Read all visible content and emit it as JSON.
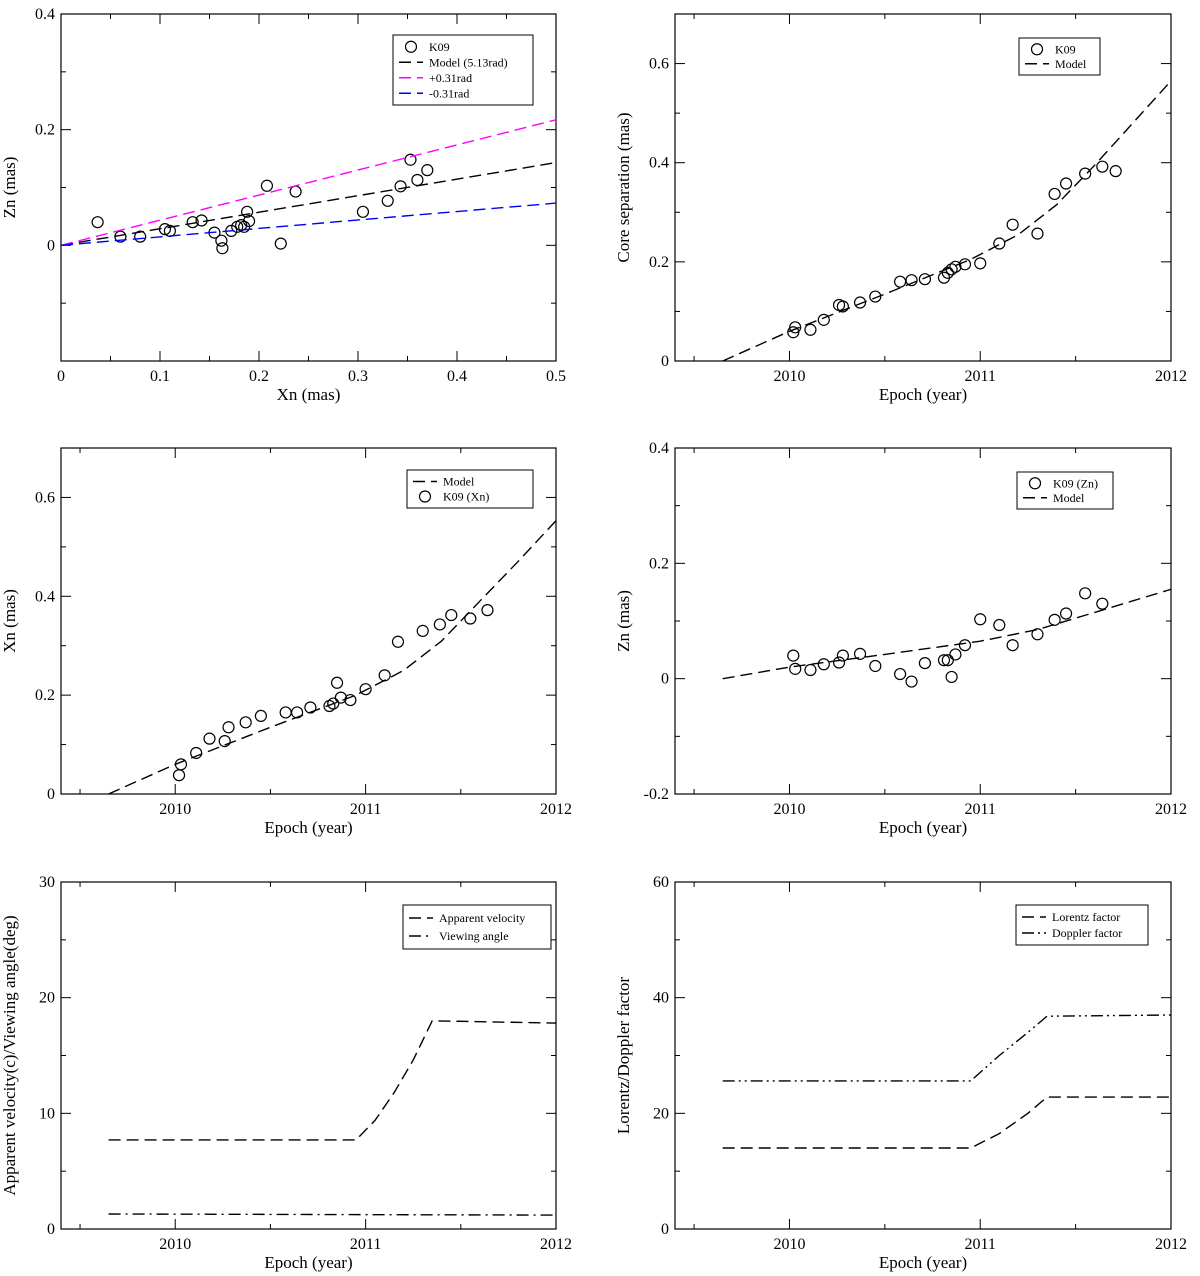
{
  "chart_data": [
    {
      "id": "p1",
      "type": "scatter",
      "xlabel": "Xn (mas)",
      "ylabel": "Zn (mas)",
      "xlim": [
        0,
        0.5
      ],
      "ylim": [
        -0.2,
        0.4
      ],
      "xticks": [
        0,
        0.1,
        0.2,
        0.3,
        0.4,
        0.5
      ],
      "xticklabels": [
        "0",
        "0.1",
        "0.2",
        "0.3",
        "0.4",
        "0.5"
      ],
      "yticks": [
        0,
        0.2,
        0.4
      ],
      "yticklabels": [
        "0",
        "0.2",
        "0.4"
      ],
      "legend_position": "top-right",
      "series": [
        {
          "name": "K09",
          "kind": "points",
          "color": "#000000",
          "x": [
            0.037,
            0.06,
            0.08,
            0.105,
            0.11,
            0.133,
            0.142,
            0.155,
            0.162,
            0.163,
            0.172,
            0.178,
            0.182,
            0.185,
            0.188,
            0.19,
            0.208,
            0.222,
            0.237,
            0.305,
            0.33,
            0.343,
            0.353,
            0.36,
            0.37
          ],
          "y": [
            0.04,
            0.015,
            0.015,
            0.028,
            0.025,
            0.04,
            0.043,
            0.022,
            0.008,
            -0.005,
            0.025,
            0.032,
            0.035,
            0.032,
            0.058,
            0.042,
            0.103,
            0.003,
            0.093,
            0.058,
            0.077,
            0.102,
            0.148,
            0.113,
            0.13
          ]
        },
        {
          "name": "Model (5.13rad)",
          "kind": "line",
          "dash": "dash",
          "color": "#000000",
          "x": [
            0,
            0.5
          ],
          "y": [
            0,
            0.143
          ]
        },
        {
          "name": "+0.31rad",
          "kind": "line",
          "dash": "dash",
          "color": "#ff00ff",
          "x": [
            0,
            0.5
          ],
          "y": [
            0,
            0.217
          ]
        },
        {
          "name": "-0.31rad",
          "kind": "line",
          "dash": "dash",
          "color": "#0000ff",
          "x": [
            0,
            0.5
          ],
          "y": [
            0,
            0.073
          ]
        }
      ]
    },
    {
      "id": "p2",
      "type": "line",
      "xlabel": "Epoch (year)",
      "ylabel": "Core separation (mas)",
      "xlim": [
        2009.4,
        2012
      ],
      "ylim": [
        0,
        0.7
      ],
      "xticks": [
        2010,
        2011,
        2012
      ],
      "xticklabels": [
        "2010",
        "2011",
        "2012"
      ],
      "yticks": [
        0,
        0.2,
        0.4,
        0.6
      ],
      "yticklabels": [
        "0",
        "0.2",
        "0.4",
        "0.6"
      ],
      "legend_position": "top-right",
      "series": [
        {
          "name": "K09",
          "kind": "points",
          "color": "#000000",
          "x": [
            2010.02,
            2010.03,
            2010.11,
            2010.18,
            2010.26,
            2010.28,
            2010.37,
            2010.45,
            2010.58,
            2010.64,
            2010.71,
            2010.81,
            2010.83,
            2010.85,
            2010.87,
            2010.92,
            2011.0,
            2011.1,
            2011.17,
            2011.3,
            2011.39,
            2011.45,
            2011.55,
            2011.64,
            2011.71
          ],
          "y": [
            0.058,
            0.068,
            0.063,
            0.083,
            0.113,
            0.11,
            0.118,
            0.13,
            0.16,
            0.163,
            0.165,
            0.168,
            0.178,
            0.185,
            0.19,
            0.195,
            0.197,
            0.237,
            0.275,
            0.257,
            0.337,
            0.358,
            0.378,
            0.392,
            0.383
          ]
        },
        {
          "name": "Model",
          "kind": "line",
          "dash": "dash",
          "color": "#000000",
          "x": [
            2009.65,
            2010.0,
            2010.5,
            2010.95,
            2011.2,
            2011.4,
            2011.6,
            2011.8,
            2012.0
          ],
          "y": [
            0.0,
            0.06,
            0.135,
            0.205,
            0.255,
            0.315,
            0.395,
            0.48,
            0.565
          ]
        }
      ]
    },
    {
      "id": "p3",
      "type": "line",
      "xlabel": "Epoch (year)",
      "ylabel": "Xn (mas)",
      "xlim": [
        2009.4,
        2012
      ],
      "ylim": [
        0,
        0.7
      ],
      "xticks": [
        2010,
        2011,
        2012
      ],
      "xticklabels": [
        "2010",
        "2011",
        "2012"
      ],
      "yticks": [
        0,
        0.2,
        0.4,
        0.6
      ],
      "yticklabels": [
        "0",
        "0.2",
        "0.4",
        "0.6"
      ],
      "legend_position": "top-right",
      "series": [
        {
          "name": "Model",
          "kind": "line",
          "dash": "dash",
          "color": "#000000",
          "x": [
            2009.65,
            2010.0,
            2010.5,
            2010.95,
            2011.2,
            2011.4,
            2011.6,
            2011.8,
            2012.0
          ],
          "y": [
            0.0,
            0.06,
            0.135,
            0.2,
            0.25,
            0.31,
            0.39,
            0.47,
            0.553
          ]
        },
        {
          "name": "K09 (Xn)",
          "kind": "points",
          "color": "#000000",
          "x": [
            2010.02,
            2010.03,
            2010.11,
            2010.18,
            2010.26,
            2010.28,
            2010.37,
            2010.45,
            2010.58,
            2010.64,
            2010.71,
            2010.81,
            2010.83,
            2010.85,
            2010.87,
            2010.92,
            2011.0,
            2011.1,
            2011.17,
            2011.3,
            2011.39,
            2011.45,
            2011.55,
            2011.64
          ],
          "y": [
            0.038,
            0.06,
            0.083,
            0.112,
            0.107,
            0.135,
            0.145,
            0.158,
            0.165,
            0.165,
            0.175,
            0.178,
            0.183,
            0.225,
            0.195,
            0.19,
            0.212,
            0.24,
            0.308,
            0.33,
            0.343,
            0.362,
            0.355,
            0.372
          ]
        }
      ]
    },
    {
      "id": "p4",
      "type": "line",
      "xlabel": "Epoch (year)",
      "ylabel": "Zn (mas)",
      "xlim": [
        2009.4,
        2012
      ],
      "ylim": [
        -0.2,
        0.4
      ],
      "xticks": [
        2010,
        2011,
        2012
      ],
      "xticklabels": [
        "2010",
        "2011",
        "2012"
      ],
      "yticks": [
        -0.2,
        0,
        0.2,
        0.4
      ],
      "yticklabels": [
        "-0.2",
        "0",
        "0.2",
        "0.4"
      ],
      "legend_position": "top-right",
      "series": [
        {
          "name": "K09 (Zn)",
          "kind": "points",
          "color": "#000000",
          "x": [
            2010.02,
            2010.03,
            2010.11,
            2010.18,
            2010.26,
            2010.28,
            2010.37,
            2010.45,
            2010.58,
            2010.64,
            2010.71,
            2010.81,
            2010.83,
            2010.85,
            2010.87,
            2010.92,
            2011.0,
            2011.1,
            2011.17,
            2011.3,
            2011.39,
            2011.45,
            2011.55,
            2011.64
          ],
          "y": [
            0.04,
            0.017,
            0.015,
            0.025,
            0.028,
            0.04,
            0.043,
            0.022,
            0.008,
            -0.005,
            0.027,
            0.032,
            0.032,
            0.003,
            0.042,
            0.058,
            0.103,
            0.093,
            0.058,
            0.077,
            0.102,
            0.113,
            0.148,
            0.13
          ]
        },
        {
          "name": "Model",
          "kind": "line",
          "dash": "dash",
          "color": "#000000",
          "x": [
            2009.65,
            2010.0,
            2010.5,
            2011.0,
            2011.3,
            2011.6,
            2012.0
          ],
          "y": [
            0.0,
            0.02,
            0.042,
            0.065,
            0.085,
            0.115,
            0.155
          ]
        }
      ]
    },
    {
      "id": "p5",
      "type": "line",
      "xlabel": "Epoch (year)",
      "ylabel": "Apparent velocity(c)/Viewing angle(deg)",
      "xlim": [
        2009.4,
        2012
      ],
      "ylim": [
        0,
        30
      ],
      "xticks": [
        2010,
        2011,
        2012
      ],
      "xticklabels": [
        "2010",
        "2011",
        "2012"
      ],
      "yticks": [
        0,
        10,
        20,
        30
      ],
      "yticklabels": [
        "0",
        "10",
        "20",
        "30"
      ],
      "legend_position": "top-right",
      "series": [
        {
          "name": "Apparent velocity",
          "kind": "line",
          "dash": "dash",
          "color": "#000000",
          "x": [
            2009.65,
            2010.95,
            2011.05,
            2011.15,
            2011.25,
            2011.35,
            2012.0
          ],
          "y": [
            7.7,
            7.7,
            9.4,
            11.8,
            14.6,
            18.0,
            17.8
          ]
        },
        {
          "name": "Viewing angle",
          "kind": "line",
          "dash": "dashdot",
          "color": "#000000",
          "x": [
            2009.65,
            2012.0
          ],
          "y": [
            1.3,
            1.2
          ]
        }
      ]
    },
    {
      "id": "p6",
      "type": "line",
      "xlabel": "Epoch (year)",
      "ylabel": "Lorentz/Doppler factor",
      "xlim": [
        2009.4,
        2012
      ],
      "ylim": [
        0,
        60
      ],
      "xticks": [
        2010,
        2011,
        2012
      ],
      "xticklabels": [
        "2010",
        "2011",
        "2012"
      ],
      "yticks": [
        0,
        20,
        40,
        60
      ],
      "yticklabels": [
        "0",
        "20",
        "40",
        "60"
      ],
      "legend_position": "top-right",
      "series": [
        {
          "name": "Lorentz factor",
          "kind": "line",
          "dash": "dash",
          "color": "#000000",
          "x": [
            2009.65,
            2010.95,
            2011.1,
            2011.25,
            2011.35,
            2012.0
          ],
          "y": [
            14.0,
            14.0,
            16.5,
            20.0,
            22.8,
            22.8
          ]
        },
        {
          "name": "Doppler factor",
          "kind": "line",
          "dash": "dashdotdot",
          "color": "#000000",
          "x": [
            2009.65,
            2010.95,
            2011.1,
            2011.25,
            2011.35,
            2012.0
          ],
          "y": [
            25.6,
            25.6,
            30.0,
            34.0,
            36.8,
            37.0
          ]
        }
      ]
    }
  ]
}
